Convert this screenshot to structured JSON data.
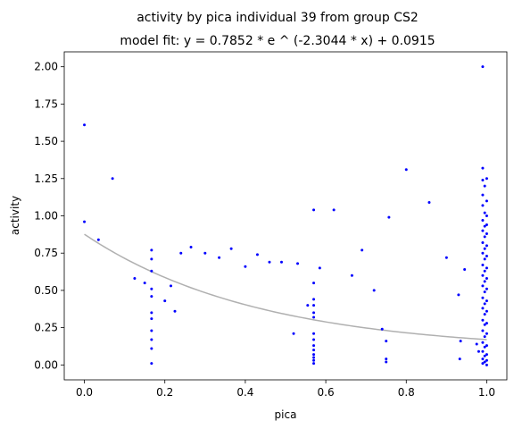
{
  "chart_data": {
    "type": "scatter",
    "title": "activity by pica individual 39 from group CS2",
    "subtitle": "model fit: y = 0.7852 * e ^ (-2.3044 * x) + 0.0915",
    "xlabel": "pica",
    "ylabel": "activity",
    "xlim": [
      -0.05,
      1.05
    ],
    "ylim": [
      -0.1,
      2.1
    ],
    "xticks": [
      0.0,
      0.2,
      0.4,
      0.6,
      0.8,
      1.0
    ],
    "xtick_labels": [
      "0.0",
      "0.2",
      "0.4",
      "0.6",
      "0.8",
      "1.0"
    ],
    "yticks": [
      0.0,
      0.25,
      0.5,
      0.75,
      1.0,
      1.25,
      1.5,
      1.75,
      2.0
    ],
    "ytick_labels": [
      "0.00",
      "0.25",
      "0.50",
      "0.75",
      "1.00",
      "1.25",
      "1.50",
      "1.75",
      "2.00"
    ],
    "grid": false,
    "points_color": "#0000ff",
    "fit_color": "#b0b0b0",
    "fit": {
      "a": 0.7852,
      "b": -2.3044,
      "c": 0.0915
    },
    "points": [
      {
        "x": 0.0,
        "y": 1.61
      },
      {
        "x": 0.0,
        "y": 0.96
      },
      {
        "x": 0.035,
        "y": 0.84
      },
      {
        "x": 0.07,
        "y": 1.25
      },
      {
        "x": 0.125,
        "y": 0.58
      },
      {
        "x": 0.15,
        "y": 0.55
      },
      {
        "x": 0.167,
        "y": 0.77
      },
      {
        "x": 0.167,
        "y": 0.71
      },
      {
        "x": 0.167,
        "y": 0.63
      },
      {
        "x": 0.167,
        "y": 0.51
      },
      {
        "x": 0.167,
        "y": 0.46
      },
      {
        "x": 0.167,
        "y": 0.35
      },
      {
        "x": 0.167,
        "y": 0.31
      },
      {
        "x": 0.167,
        "y": 0.23
      },
      {
        "x": 0.167,
        "y": 0.17
      },
      {
        "x": 0.167,
        "y": 0.11
      },
      {
        "x": 0.167,
        "y": 0.01
      },
      {
        "x": 0.2,
        "y": 0.43
      },
      {
        "x": 0.215,
        "y": 0.53
      },
      {
        "x": 0.225,
        "y": 0.36
      },
      {
        "x": 0.24,
        "y": 0.75
      },
      {
        "x": 0.265,
        "y": 0.79
      },
      {
        "x": 0.3,
        "y": 0.75
      },
      {
        "x": 0.335,
        "y": 0.72
      },
      {
        "x": 0.365,
        "y": 0.78
      },
      {
        "x": 0.4,
        "y": 0.66
      },
      {
        "x": 0.43,
        "y": 0.74
      },
      {
        "x": 0.46,
        "y": 0.69
      },
      {
        "x": 0.49,
        "y": 0.69
      },
      {
        "x": 0.52,
        "y": 0.21
      },
      {
        "x": 0.53,
        "y": 0.68
      },
      {
        "x": 0.555,
        "y": 0.4
      },
      {
        "x": 0.57,
        "y": 1.04
      },
      {
        "x": 0.57,
        "y": 0.55
      },
      {
        "x": 0.57,
        "y": 0.44
      },
      {
        "x": 0.57,
        "y": 0.4
      },
      {
        "x": 0.57,
        "y": 0.35
      },
      {
        "x": 0.57,
        "y": 0.32
      },
      {
        "x": 0.57,
        "y": 0.21
      },
      {
        "x": 0.57,
        "y": 0.17
      },
      {
        "x": 0.57,
        "y": 0.13
      },
      {
        "x": 0.57,
        "y": 0.1
      },
      {
        "x": 0.57,
        "y": 0.07
      },
      {
        "x": 0.57,
        "y": 0.05
      },
      {
        "x": 0.57,
        "y": 0.03
      },
      {
        "x": 0.57,
        "y": 0.01
      },
      {
        "x": 0.585,
        "y": 0.65
      },
      {
        "x": 0.62,
        "y": 1.04
      },
      {
        "x": 0.665,
        "y": 0.6
      },
      {
        "x": 0.69,
        "y": 0.77
      },
      {
        "x": 0.72,
        "y": 0.5
      },
      {
        "x": 0.74,
        "y": 0.24
      },
      {
        "x": 0.75,
        "y": 0.16
      },
      {
        "x": 0.75,
        "y": 0.04
      },
      {
        "x": 0.75,
        "y": 0.02
      },
      {
        "x": 0.757,
        "y": 0.99
      },
      {
        "x": 0.8,
        "y": 1.31
      },
      {
        "x": 0.857,
        "y": 1.09
      },
      {
        "x": 0.9,
        "y": 0.72
      },
      {
        "x": 0.93,
        "y": 0.47
      },
      {
        "x": 0.933,
        "y": 0.04
      },
      {
        "x": 0.935,
        "y": 0.16
      },
      {
        "x": 0.945,
        "y": 0.64
      },
      {
        "x": 0.975,
        "y": 0.14
      },
      {
        "x": 0.98,
        "y": 0.09
      },
      {
        "x": 0.99,
        "y": 2.0
      },
      {
        "x": 0.99,
        "y": 1.32
      },
      {
        "x": 0.99,
        "y": 1.24
      },
      {
        "x": 0.99,
        "y": 1.14
      },
      {
        "x": 0.99,
        "y": 1.07
      },
      {
        "x": 0.99,
        "y": 0.97
      },
      {
        "x": 0.99,
        "y": 0.9
      },
      {
        "x": 0.99,
        "y": 0.82
      },
      {
        "x": 0.99,
        "y": 0.75
      },
      {
        "x": 0.99,
        "y": 0.67
      },
      {
        "x": 0.99,
        "y": 0.6
      },
      {
        "x": 0.99,
        "y": 0.53
      },
      {
        "x": 0.99,
        "y": 0.45
      },
      {
        "x": 0.99,
        "y": 0.38
      },
      {
        "x": 0.99,
        "y": 0.3
      },
      {
        "x": 0.99,
        "y": 0.23
      },
      {
        "x": 0.99,
        "y": 0.15
      },
      {
        "x": 0.99,
        "y": 0.09
      },
      {
        "x": 0.99,
        "y": 0.04
      },
      {
        "x": 0.99,
        "y": 0.01
      },
      {
        "x": 0.995,
        "y": 1.2
      },
      {
        "x": 0.995,
        "y": 1.02
      },
      {
        "x": 0.995,
        "y": 0.93
      },
      {
        "x": 0.995,
        "y": 0.86
      },
      {
        "x": 0.995,
        "y": 0.78
      },
      {
        "x": 0.995,
        "y": 0.71
      },
      {
        "x": 0.995,
        "y": 0.63
      },
      {
        "x": 0.995,
        "y": 0.56
      },
      {
        "x": 0.995,
        "y": 0.49
      },
      {
        "x": 0.995,
        "y": 0.41
      },
      {
        "x": 0.995,
        "y": 0.34
      },
      {
        "x": 0.995,
        "y": 0.27
      },
      {
        "x": 0.995,
        "y": 0.19
      },
      {
        "x": 0.995,
        "y": 0.12
      },
      {
        "x": 0.995,
        "y": 0.06
      },
      {
        "x": 0.995,
        "y": 0.02
      },
      {
        "x": 1.0,
        "y": 1.25
      },
      {
        "x": 1.0,
        "y": 1.1
      },
      {
        "x": 1.0,
        "y": 1.0
      },
      {
        "x": 1.0,
        "y": 0.94
      },
      {
        "x": 1.0,
        "y": 0.88
      },
      {
        "x": 1.0,
        "y": 0.8
      },
      {
        "x": 1.0,
        "y": 0.73
      },
      {
        "x": 1.0,
        "y": 0.65
      },
      {
        "x": 1.0,
        "y": 0.58
      },
      {
        "x": 1.0,
        "y": 0.51
      },
      {
        "x": 1.0,
        "y": 0.43
      },
      {
        "x": 1.0,
        "y": 0.36
      },
      {
        "x": 1.0,
        "y": 0.28
      },
      {
        "x": 1.0,
        "y": 0.21
      },
      {
        "x": 1.0,
        "y": 0.13
      },
      {
        "x": 1.0,
        "y": 0.07
      },
      {
        "x": 1.0,
        "y": 0.03
      },
      {
        "x": 1.0,
        "y": 0.0
      }
    ]
  }
}
